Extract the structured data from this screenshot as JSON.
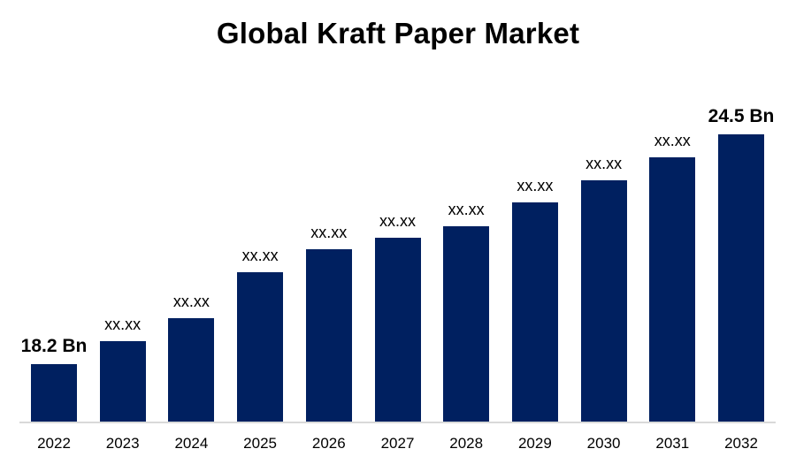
{
  "chart_data": {
    "type": "bar",
    "title": "Global Kraft Paper Market",
    "categories": [
      "2022",
      "2023",
      "2024",
      "2025",
      "2026",
      "2027",
      "2028",
      "2029",
      "2030",
      "2031",
      "2032"
    ],
    "values": [
      18.2,
      18.83,
      19.46,
      20.72,
      21.35,
      21.67,
      21.98,
      22.63,
      23.24,
      23.87,
      24.5
    ],
    "value_labels": [
      "18.2 Bn",
      "xx.xx",
      "xx.xx",
      "xx.xx",
      "xx.xx",
      "xx.xx",
      "xx.xx",
      "xx.xx",
      "xx.xx",
      "xx.xx",
      "24.5 Bn"
    ],
    "emphasized_labels": [
      true,
      false,
      false,
      false,
      false,
      false,
      false,
      false,
      false,
      false,
      true
    ],
    "unit_suffix": "Bn",
    "xlabel": "",
    "ylabel": "",
    "y_axis_visible": false,
    "gridlines": false,
    "legend": "none",
    "bar_color": "#002060",
    "axis_line_color": "#D9D9D9",
    "text_color": "#000000",
    "background_color": "#ffffff"
  }
}
